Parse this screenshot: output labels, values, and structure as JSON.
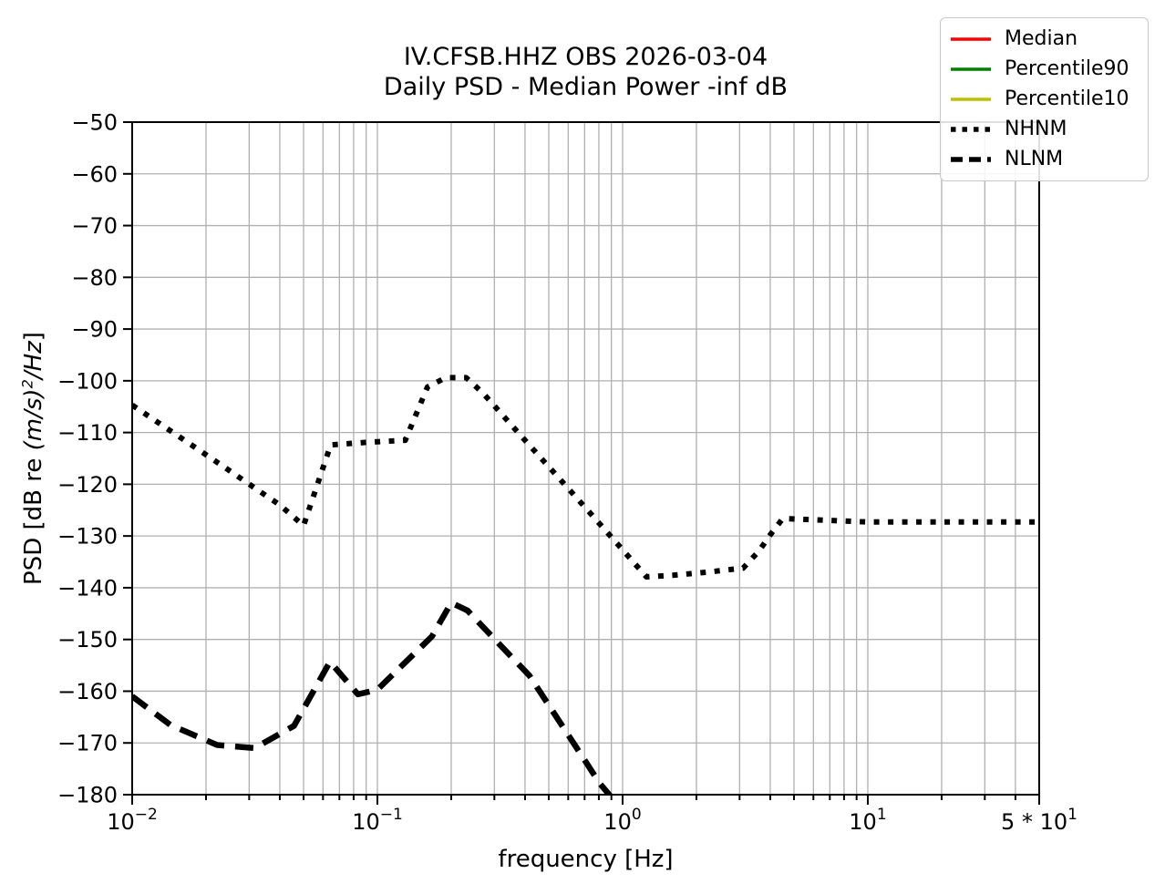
{
  "chart_data": {
    "type": "line",
    "title": "IV.CFSB.HHZ OBS 2026-03-04",
    "subtitle": "Daily PSD - Median Power -inf dB",
    "xlabel": "frequency [Hz]",
    "ylabel": "PSD [dB re (m/s)²/Hz]",
    "ylabel_parts": {
      "prefix": "PSD [dB re ",
      "math": "(m/s)",
      "sup": "2",
      "suffix": "/Hz",
      "close": "]"
    },
    "x_scale": "log",
    "xlim": [
      0.01,
      50
    ],
    "ylim": [
      -180,
      -50
    ],
    "grid": true,
    "legend_position": "upper right",
    "y_ticks": [
      -50,
      -60,
      -70,
      -80,
      -90,
      -100,
      -110,
      -120,
      -130,
      -140,
      -150,
      -160,
      -170,
      -180
    ],
    "y_tick_labels": [
      "−50",
      "−60",
      "−70",
      "−80",
      "−90",
      "−100",
      "−110",
      "−120",
      "−130",
      "−140",
      "−150",
      "−160",
      "−170",
      "−180"
    ],
    "x_ticks": [
      {
        "value": 0.01,
        "base": "10",
        "exp": "−2"
      },
      {
        "value": 0.1,
        "base": "10",
        "exp": "−1"
      },
      {
        "value": 1,
        "base": "10",
        "exp": "0"
      },
      {
        "value": 10,
        "base": "10",
        "exp": "1"
      },
      {
        "value": 50,
        "base": "5 * 10",
        "exp": "1"
      }
    ],
    "series": [
      {
        "name": "Median",
        "color": "#ff0000",
        "style": "solid",
        "points": []
      },
      {
        "name": "Percentile90",
        "color": "#008000",
        "style": "solid",
        "points": []
      },
      {
        "name": "Percentile10",
        "color": "#bfbf00",
        "style": "solid",
        "points": []
      },
      {
        "name": "NHNM",
        "color": "#000000",
        "style": "dotted",
        "points": [
          [
            0.01,
            -104.7
          ],
          [
            0.0125,
            -107.8
          ],
          [
            0.016,
            -111.2
          ],
          [
            0.02,
            -114.3
          ],
          [
            0.025,
            -117.4
          ],
          [
            0.032,
            -120.9
          ],
          [
            0.04,
            -124.0
          ],
          [
            0.05,
            -128.0
          ],
          [
            0.0645,
            -112.4
          ],
          [
            0.09,
            -111.9
          ],
          [
            0.13,
            -111.5
          ],
          [
            0.16,
            -101.2
          ],
          [
            0.19,
            -99.4
          ],
          [
            0.23,
            -99.4
          ],
          [
            0.27,
            -102.4
          ],
          [
            0.4,
            -111.5
          ],
          [
            0.6,
            -120.8
          ],
          [
            0.9,
            -130.2
          ],
          [
            1.25,
            -137.9
          ],
          [
            1.6,
            -137.6
          ],
          [
            2.2,
            -137.0
          ],
          [
            3.1,
            -136.2
          ],
          [
            3.6,
            -132.9
          ],
          [
            4.0,
            -129.8
          ],
          [
            4.5,
            -126.6
          ],
          [
            7.0,
            -127.0
          ],
          [
            10,
            -127.3
          ],
          [
            20,
            -127.3
          ],
          [
            50,
            -127.3
          ]
        ]
      },
      {
        "name": "NLNM",
        "color": "#000000",
        "style": "dashed",
        "points": [
          [
            0.01,
            -161.0
          ],
          [
            0.0143,
            -166.5
          ],
          [
            0.0222,
            -170.4
          ],
          [
            0.0316,
            -171.0
          ],
          [
            0.0457,
            -166.7
          ],
          [
            0.0641,
            -154.3
          ],
          [
            0.0833,
            -160.6
          ],
          [
            0.1,
            -159.7
          ],
          [
            0.125,
            -155.2
          ],
          [
            0.167,
            -149.4
          ],
          [
            0.2,
            -142.9
          ],
          [
            0.233,
            -144.4
          ],
          [
            0.3,
            -149.9
          ],
          [
            0.417,
            -157.0
          ],
          [
            0.55,
            -165.7
          ],
          [
            0.7,
            -173.3
          ],
          [
            0.806,
            -177.8
          ],
          [
            0.9,
            -180.5
          ]
        ]
      }
    ],
    "colors": {
      "grid": "#b0b0b0",
      "frame": "#000000",
      "legend_border": "#c9c9c9",
      "background": "#ffffff"
    }
  }
}
